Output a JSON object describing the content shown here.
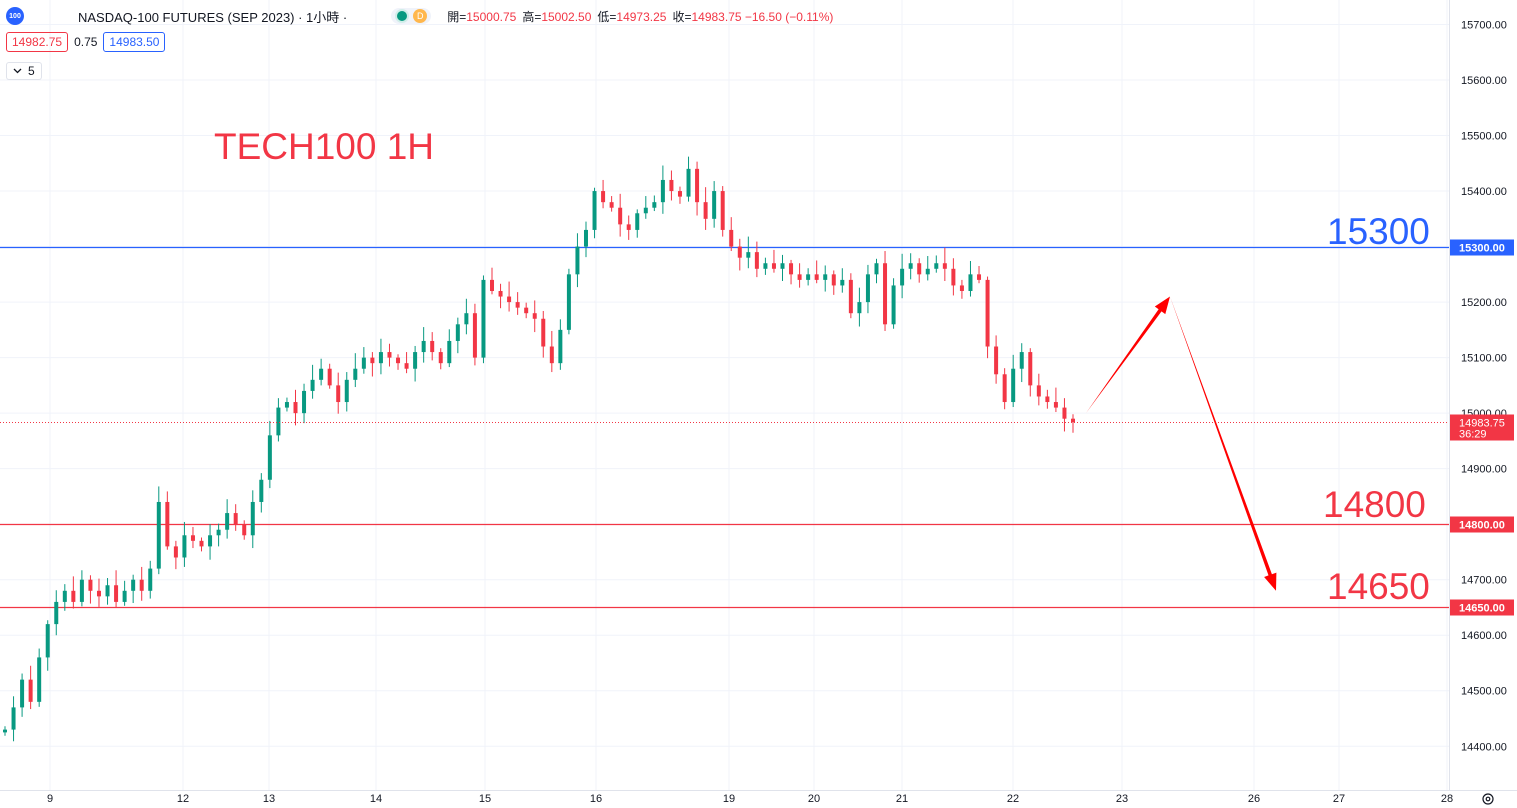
{
  "header": {
    "logo_text": "100",
    "symbol": "NASDAQ-100 FUTURES (SEP 2023) · 1小時 ·",
    "badge_d": "D",
    "ohlc": [
      {
        "label": "開=",
        "value": "15000.75"
      },
      {
        "label": "高=",
        "value": "15002.50"
      },
      {
        "label": "低=",
        "value": "14973.25"
      },
      {
        "label": "收=",
        "value": "14983.75 −16.50 (−0.11%)"
      }
    ]
  },
  "quote": {
    "bid": "14982.75",
    "spread": "0.75",
    "ask": "14983.50"
  },
  "indicator_toggle": {
    "icon": "chevron-down-icon",
    "count": "5"
  },
  "annotations": {
    "title": "TECH100 1H",
    "level_15300": "15300",
    "level_14800": "14800",
    "level_14650": "14650"
  },
  "colors": {
    "up": "#089981",
    "down": "#f23645",
    "resistance_line": "#2962ff",
    "support_line": "#f23645",
    "arrow": "#ff0000",
    "title_text": "#f23645"
  },
  "chart_data": {
    "type": "candlestick",
    "ylim": [
      14375,
      15755
    ],
    "yticks": [
      14400,
      14500,
      14600,
      14700,
      14800,
      14900,
      15000,
      15100,
      15200,
      15300,
      15400,
      15500,
      15600,
      15700
    ],
    "x_tick_labels": [
      "9",
      "12",
      "13",
      "14",
      "15",
      "16",
      "19",
      "20",
      "21",
      "22",
      "23",
      "26",
      "27",
      "28"
    ],
    "last_price": {
      "value": 14983.75,
      "label": "14983.75",
      "countdown": "36:29"
    },
    "horizontal_levels": [
      {
        "value": 15300,
        "label": "15300.00",
        "color": "#2962ff"
      },
      {
        "value": 14800,
        "label": "14800.00",
        "color": "#f23645"
      },
      {
        "value": 14650,
        "label": "14650.00",
        "color": "#f23645"
      }
    ],
    "projection_path": [
      15000,
      15210,
      14680
    ],
    "close_series": [
      14430,
      14470,
      14520,
      14480,
      14560,
      14620,
      14660,
      14680,
      14660,
      14700,
      14680,
      14670,
      14690,
      14660,
      14680,
      14700,
      14680,
      14720,
      14840,
      14760,
      14740,
      14780,
      14770,
      14760,
      14780,
      14790,
      14820,
      14800,
      14780,
      14840,
      14880,
      14960,
      15010,
      15020,
      15000,
      15040,
      15060,
      15080,
      15050,
      15020,
      15060,
      15080,
      15100,
      15090,
      15110,
      15100,
      15090,
      15080,
      15110,
      15130,
      15110,
      15090,
      15130,
      15160,
      15180,
      15100,
      15240,
      15220,
      15210,
      15200,
      15190,
      15180,
      15170,
      15120,
      15090,
      15150,
      15250,
      15300,
      15330,
      15400,
      15380,
      15370,
      15340,
      15330,
      15360,
      15370,
      15380,
      15420,
      15400,
      15390,
      15440,
      15380,
      15350,
      15400,
      15330,
      15300,
      15280,
      15290,
      15260,
      15270,
      15260,
      15270,
      15250,
      15240,
      15250,
      15240,
      15250,
      15230,
      15240,
      15180,
      15200,
      15250,
      15270,
      15160,
      15230,
      15260,
      15270,
      15250,
      15260,
      15270,
      15260,
      15230,
      15220,
      15250,
      15240,
      15120,
      15070,
      15020,
      15080,
      15110,
      15050,
      15030,
      15020,
      15010,
      14990,
      14983.75
    ]
  }
}
